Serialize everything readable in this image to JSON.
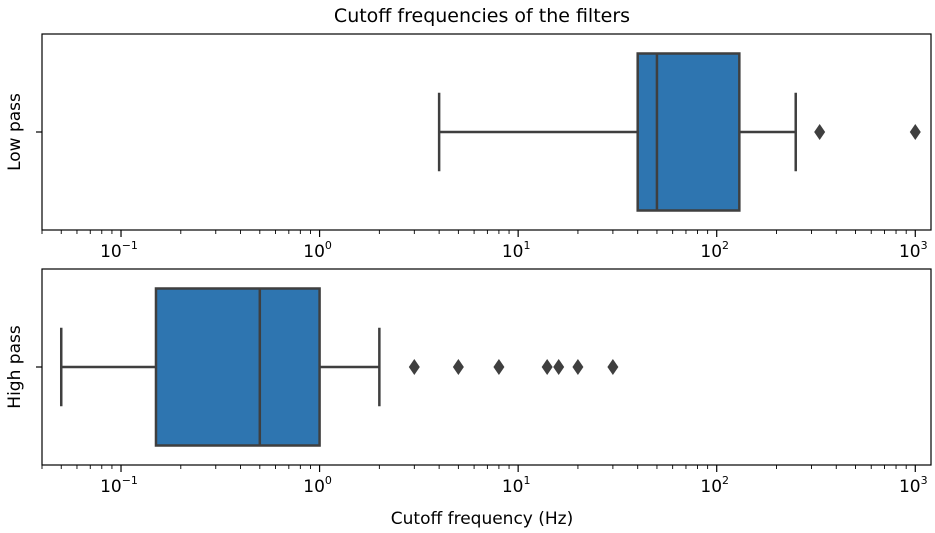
{
  "chart_data": {
    "type": "boxplot",
    "title": "Cutoff frequencies of the filters",
    "xlabel": "Cutoff frequency (Hz)",
    "x_scale": "log",
    "xlim": [
      0.04,
      1200
    ],
    "grid": false,
    "box_color": "#2e75b0",
    "line_color": "#3f3f3f",
    "x_ticks": [
      {
        "base": "10",
        "exp": "−1",
        "value": 0.1
      },
      {
        "base": "10",
        "exp": "0",
        "value": 1
      },
      {
        "base": "10",
        "exp": "1",
        "value": 10
      },
      {
        "base": "10",
        "exp": "2",
        "value": 100
      },
      {
        "base": "10",
        "exp": "3",
        "value": 1000
      }
    ],
    "panels": [
      {
        "ylabel": "Low pass",
        "whisker_low": 4,
        "q1": 40,
        "median": 50,
        "q3": 130,
        "whisker_high": 250,
        "outliers": [
          330,
          1000
        ]
      },
      {
        "ylabel": "High pass",
        "whisker_low": 0.05,
        "q1": 0.15,
        "median": 0.5,
        "q3": 1.0,
        "whisker_high": 2,
        "outliers": [
          3,
          5,
          8,
          14,
          16,
          20,
          30
        ]
      }
    ]
  }
}
